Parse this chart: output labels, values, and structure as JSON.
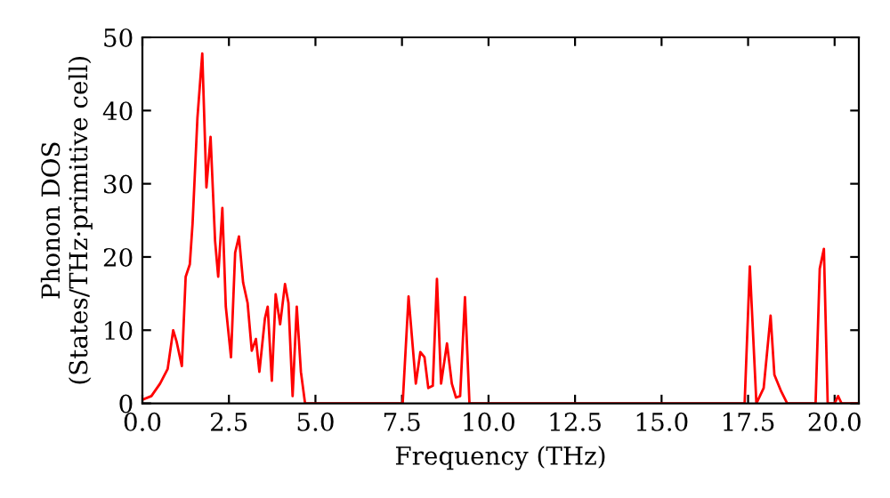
{
  "chart_data": {
    "type": "line",
    "xlabel": "Frequency (THz)",
    "ylabel": "Phonon DOS\n(States/THz·primitive cell)",
    "series": [
      {
        "color": "#ff0000",
        "x": [
          0,
          0.26,
          0.51,
          0.73,
          0.89,
          0.99,
          1.14,
          1.25,
          1.37,
          1.45,
          1.59,
          1.73,
          1.85,
          1.97,
          2.1,
          2.19,
          2.31,
          2.41,
          2.56,
          2.68,
          2.79,
          2.91,
          3.04,
          3.16,
          3.28,
          3.38,
          3.54,
          3.62,
          3.74,
          3.85,
          3.98,
          4.12,
          4.22,
          4.34,
          4.46,
          4.58,
          4.7,
          7.52,
          7.69,
          7.9,
          8.03,
          8.15,
          8.26,
          8.39,
          8.51,
          8.63,
          8.8,
          8.94,
          9.06,
          9.18,
          9.32,
          9.45,
          17.4,
          17.55,
          17.74,
          17.95,
          18.15,
          18.26,
          18.46,
          18.63,
          19.45,
          19.57,
          19.69,
          19.8,
          20.0,
          20.1,
          20.2,
          20.7
        ],
        "values": [
          0.5,
          1,
          2.7,
          4.7,
          10,
          8.4,
          5.1,
          17.3,
          19,
          24.6,
          39,
          47.8,
          29.5,
          36.4,
          22.2,
          17.3,
          26.7,
          13.2,
          6.3,
          20.6,
          22.8,
          16.5,
          13.7,
          7.2,
          8.8,
          4.3,
          11.6,
          13.2,
          3.1,
          14.9,
          10.8,
          16.3,
          13.7,
          1,
          13.2,
          4.3,
          0,
          0,
          14.6,
          2.7,
          7,
          6.3,
          2.1,
          2.4,
          17,
          2.7,
          8.2,
          2.7,
          0.8,
          1,
          14.5,
          0,
          0,
          18.7,
          0,
          2.1,
          12,
          3.9,
          1.6,
          0,
          0,
          18.4,
          21.1,
          0,
          0,
          1,
          0,
          0
        ]
      }
    ],
    "xlim": [
      0,
      20.7
    ],
    "ylim": [
      0,
      50
    ],
    "xticks": [
      {
        "value": 0,
        "label": "0.0"
      },
      {
        "value": 2.5,
        "label": "2.5"
      },
      {
        "value": 5,
        "label": "5.0"
      },
      {
        "value": 7.5,
        "label": "7.5"
      },
      {
        "value": 10,
        "label": "10.0"
      },
      {
        "value": 12.5,
        "label": "12.5"
      },
      {
        "value": 15,
        "label": "15.0"
      },
      {
        "value": 17.5,
        "label": "17.5"
      },
      {
        "value": 20,
        "label": "20.0"
      }
    ],
    "yticks": [
      0,
      10,
      20,
      30,
      40,
      50
    ],
    "grid": false,
    "legend": false
  }
}
